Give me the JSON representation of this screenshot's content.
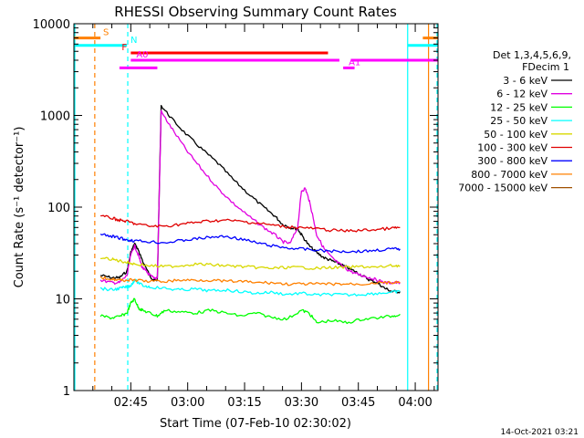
{
  "chart_data": {
    "type": "line",
    "title": "RHESSI Observing Summary Count Rates",
    "xlabel": "Start Time (07-Feb-10 02:30:02)",
    "ylabel": "Count Rate (s⁻¹ detector⁻¹)",
    "yscale": "log",
    "ylim": [
      1,
      10000
    ],
    "xlim_minutes": [
      0,
      96
    ],
    "y_ticks": [
      {
        "value": 1,
        "label": "1"
      },
      {
        "value": 10,
        "label": "10"
      },
      {
        "value": 100,
        "label": "100"
      },
      {
        "value": 1000,
        "label": "1000"
      },
      {
        "value": 10000,
        "label": "10000"
      }
    ],
    "x_ticks": [
      {
        "value": 15,
        "label": "02:45"
      },
      {
        "value": 30,
        "label": "03:00"
      },
      {
        "value": 45,
        "label": "03:15"
      },
      {
        "value": 60,
        "label": "03:30"
      },
      {
        "value": 75,
        "label": "03:45"
      },
      {
        "value": 90,
        "label": "04:00"
      }
    ],
    "legend_title": [
      "Det 1,3,4,5,6,9,",
      "FDecim 1"
    ],
    "legend_position": "right",
    "series": [
      {
        "name": "3 - 6 keV",
        "color": "#000000",
        "points": [
          [
            7,
            18
          ],
          [
            10,
            17
          ],
          [
            12,
            17
          ],
          [
            14,
            20
          ],
          [
            15,
            32
          ],
          [
            16,
            40
          ],
          [
            17,
            34
          ],
          [
            18,
            26
          ],
          [
            19,
            22
          ],
          [
            20,
            18
          ],
          [
            21,
            16
          ],
          [
            22,
            16
          ],
          [
            23,
            1280
          ],
          [
            26,
            900
          ],
          [
            30,
            600
          ],
          [
            34,
            420
          ],
          [
            38,
            300
          ],
          [
            42,
            200
          ],
          [
            46,
            140
          ],
          [
            50,
            100
          ],
          [
            53,
            80
          ],
          [
            55,
            65
          ],
          [
            57,
            60
          ],
          [
            59,
            58
          ],
          [
            60,
            50
          ],
          [
            62,
            38
          ],
          [
            64,
            32
          ],
          [
            66,
            28
          ],
          [
            68,
            26
          ],
          [
            70,
            24
          ],
          [
            72,
            22
          ],
          [
            74,
            20
          ],
          [
            76,
            18
          ],
          [
            78,
            16
          ],
          [
            80,
            15
          ],
          [
            82,
            13
          ],
          [
            84,
            12
          ],
          [
            86,
            12
          ]
        ]
      },
      {
        "name": "6 - 12 keV",
        "color": "#e000e0",
        "points": [
          [
            7,
            16
          ],
          [
            10,
            15
          ],
          [
            12,
            15
          ],
          [
            14,
            18
          ],
          [
            15,
            30
          ],
          [
            16,
            38
          ],
          [
            17,
            30
          ],
          [
            18,
            22
          ],
          [
            19,
            20
          ],
          [
            20,
            18
          ],
          [
            21,
            17
          ],
          [
            22,
            17
          ],
          [
            23,
            1100
          ],
          [
            26,
            700
          ],
          [
            30,
            400
          ],
          [
            34,
            250
          ],
          [
            38,
            160
          ],
          [
            42,
            110
          ],
          [
            46,
            80
          ],
          [
            50,
            60
          ],
          [
            53,
            50
          ],
          [
            55,
            42
          ],
          [
            57,
            40
          ],
          [
            59,
            60
          ],
          [
            60,
            150
          ],
          [
            61,
            160
          ],
          [
            62,
            120
          ],
          [
            63,
            80
          ],
          [
            64,
            50
          ],
          [
            66,
            35
          ],
          [
            68,
            28
          ],
          [
            70,
            24
          ],
          [
            72,
            21
          ],
          [
            74,
            19
          ],
          [
            76,
            18
          ],
          [
            78,
            17
          ],
          [
            80,
            16
          ],
          [
            82,
            15
          ],
          [
            84,
            15
          ],
          [
            86,
            15
          ]
        ]
      },
      {
        "name": "12 - 25 keV",
        "color": "#00ff00",
        "points": [
          [
            7,
            6.5
          ],
          [
            10,
            6.2
          ],
          [
            12,
            6.4
          ],
          [
            14,
            7
          ],
          [
            15,
            9
          ],
          [
            16,
            10
          ],
          [
            17,
            8
          ],
          [
            18,
            7.5
          ],
          [
            20,
            7
          ],
          [
            22,
            6.5
          ],
          [
            24,
            7.5
          ],
          [
            28,
            7.2
          ],
          [
            32,
            7
          ],
          [
            36,
            7.5
          ],
          [
            40,
            7
          ],
          [
            44,
            6.5
          ],
          [
            48,
            7
          ],
          [
            52,
            6.3
          ],
          [
            56,
            6
          ],
          [
            60,
            7.5
          ],
          [
            62,
            7
          ],
          [
            64,
            5.5
          ],
          [
            68,
            5.8
          ],
          [
            72,
            5.5
          ],
          [
            76,
            6
          ],
          [
            80,
            6.2
          ],
          [
            84,
            6.5
          ],
          [
            86,
            6.8
          ]
        ]
      },
      {
        "name": "25 - 50 keV",
        "color": "#00ffff",
        "points": [
          [
            7,
            13
          ],
          [
            10,
            12.5
          ],
          [
            12,
            13
          ],
          [
            14,
            13.5
          ],
          [
            15,
            14
          ],
          [
            16,
            16
          ],
          [
            18,
            14
          ],
          [
            20,
            13.5
          ],
          [
            24,
            13
          ],
          [
            28,
            12.5
          ],
          [
            32,
            12.8
          ],
          [
            36,
            12.2
          ],
          [
            40,
            12.5
          ],
          [
            44,
            12
          ],
          [
            48,
            11.5
          ],
          [
            52,
            11.8
          ],
          [
            56,
            11.2
          ],
          [
            60,
            11.5
          ],
          [
            64,
            11
          ],
          [
            68,
            11.2
          ],
          [
            72,
            11
          ],
          [
            76,
            11.2
          ],
          [
            80,
            11.5
          ],
          [
            84,
            11.8
          ],
          [
            86,
            12
          ]
        ]
      },
      {
        "name": "50 - 100 keV",
        "color": "#d8d800",
        "points": [
          [
            7,
            28
          ],
          [
            10,
            27
          ],
          [
            12,
            26
          ],
          [
            14,
            25
          ],
          [
            16,
            24
          ],
          [
            20,
            23
          ],
          [
            24,
            22.5
          ],
          [
            28,
            23
          ],
          [
            32,
            24
          ],
          [
            36,
            23.5
          ],
          [
            40,
            23
          ],
          [
            44,
            22.5
          ],
          [
            48,
            22
          ],
          [
            52,
            21.5
          ],
          [
            56,
            22
          ],
          [
            60,
            22
          ],
          [
            64,
            21.5
          ],
          [
            68,
            22
          ],
          [
            72,
            22
          ],
          [
            76,
            22.5
          ],
          [
            80,
            22
          ],
          [
            84,
            23
          ],
          [
            86,
            23
          ]
        ]
      },
      {
        "name": "100 - 300 keV",
        "color": "#e00000",
        "points": [
          [
            7,
            80
          ],
          [
            10,
            76
          ],
          [
            12,
            72
          ],
          [
            14,
            70
          ],
          [
            16,
            66
          ],
          [
            20,
            62
          ],
          [
            24,
            62
          ],
          [
            28,
            65
          ],
          [
            32,
            68
          ],
          [
            36,
            71
          ],
          [
            40,
            72
          ],
          [
            44,
            70
          ],
          [
            48,
            67
          ],
          [
            52,
            64
          ],
          [
            56,
            61
          ],
          [
            60,
            60
          ],
          [
            64,
            58
          ],
          [
            68,
            56
          ],
          [
            72,
            55
          ],
          [
            76,
            56
          ],
          [
            80,
            57
          ],
          [
            84,
            59
          ],
          [
            86,
            60
          ]
        ]
      },
      {
        "name": "300 - 800 keV",
        "color": "#0000ff",
        "points": [
          [
            7,
            50
          ],
          [
            10,
            48
          ],
          [
            12,
            46
          ],
          [
            14,
            44
          ],
          [
            16,
            43
          ],
          [
            20,
            42
          ],
          [
            24,
            41
          ],
          [
            28,
            43
          ],
          [
            32,
            45
          ],
          [
            36,
            47
          ],
          [
            40,
            48
          ],
          [
            44,
            45
          ],
          [
            48,
            41
          ],
          [
            52,
            38
          ],
          [
            56,
            36
          ],
          [
            60,
            35
          ],
          [
            64,
            34
          ],
          [
            68,
            33
          ],
          [
            72,
            33
          ],
          [
            76,
            33
          ],
          [
            80,
            34
          ],
          [
            84,
            35
          ],
          [
            86,
            35
          ]
        ]
      },
      {
        "name": "800 - 7000 keV",
        "color": "#ff8000",
        "points": [
          [
            7,
            17
          ],
          [
            10,
            16.5
          ],
          [
            12,
            16
          ],
          [
            14,
            16
          ],
          [
            16,
            16
          ],
          [
            20,
            15.5
          ],
          [
            24,
            15.5
          ],
          [
            28,
            16
          ],
          [
            32,
            16
          ],
          [
            36,
            16
          ],
          [
            40,
            15.5
          ],
          [
            44,
            15.5
          ],
          [
            48,
            15
          ],
          [
            52,
            15
          ],
          [
            56,
            14.5
          ],
          [
            60,
            14.5
          ],
          [
            64,
            14.5
          ],
          [
            68,
            14.5
          ],
          [
            72,
            14.5
          ],
          [
            76,
            14.5
          ],
          [
            80,
            15
          ],
          [
            84,
            15
          ],
          [
            86,
            15
          ]
        ]
      },
      {
        "name": "7000 - 15000 keV",
        "color": "#a05000",
        "points": []
      }
    ],
    "annotations": [
      {
        "label": "S",
        "color": "#ff8000",
        "y": 7000,
        "segments": [
          [
            -2,
            7
          ],
          [
            92,
            96
          ]
        ]
      },
      {
        "label": "N",
        "color": "#00ffff",
        "y": 5800,
        "segments": [
          [
            -2,
            14
          ],
          [
            88,
            96
          ]
        ]
      },
      {
        "label": "F",
        "color": "#ff0000",
        "y": 4800,
        "segments": [
          [
            15,
            67
          ]
        ]
      },
      {
        "label": "A0",
        "color": "#ff00ff",
        "y": 4000,
        "segments": [
          [
            15,
            70
          ],
          [
            73,
            96
          ]
        ]
      },
      {
        "label": "A1",
        "color": "#ff00ff",
        "y": 3300,
        "segments": [
          [
            71,
            74
          ]
        ]
      },
      {
        "label": "",
        "color": "#ff00ff",
        "y": 3300,
        "segments": [
          [
            12,
            22
          ]
        ]
      }
    ],
    "vertical_markers": [
      {
        "x": -2,
        "color": "#00ffff",
        "style": "solid"
      },
      {
        "x": 5.5,
        "color": "#ff8000",
        "style": "dashed"
      },
      {
        "x": 14.2,
        "color": "#00ffff",
        "style": "dashed"
      },
      {
        "x": 88,
        "color": "#00ffff",
        "style": "solid"
      },
      {
        "x": 93.5,
        "color": "#ff8000",
        "style": "solid"
      },
      {
        "x": 97.5,
        "color": "#00ffff",
        "style": "dashed"
      }
    ]
  },
  "timestamp": "14-Oct-2021 03:21"
}
